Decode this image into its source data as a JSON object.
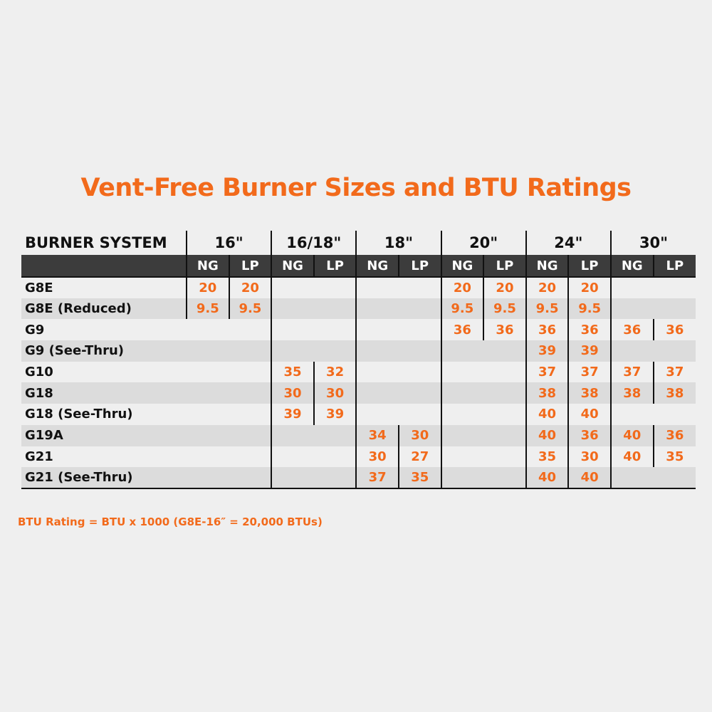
{
  "title": "Vent-Free Burner Sizes and BTU Ratings",
  "header": {
    "system_label": "BURNER SYSTEM",
    "sizes": [
      "16\"",
      "16/18\"",
      "18\"",
      "20\"",
      "24\"",
      "30\""
    ],
    "fuels": [
      "NG",
      "LP"
    ]
  },
  "rows": [
    {
      "name": "G8E",
      "values": [
        "20",
        "20",
        "",
        "",
        "",
        "",
        "20",
        "20",
        "20",
        "20",
        "",
        ""
      ]
    },
    {
      "name": "G8E (Reduced)",
      "values": [
        "9.5",
        "9.5",
        "",
        "",
        "",
        "",
        "9.5",
        "9.5",
        "9.5",
        "9.5",
        "",
        ""
      ]
    },
    {
      "name": "G9",
      "values": [
        "",
        "",
        "",
        "",
        "",
        "",
        "36",
        "36",
        "36",
        "36",
        "36",
        "36"
      ]
    },
    {
      "name": "G9 (See-Thru)",
      "values": [
        "",
        "",
        "",
        "",
        "",
        "",
        "",
        "",
        "39",
        "39",
        "",
        ""
      ]
    },
    {
      "name": "G10",
      "values": [
        "",
        "",
        "35",
        "32",
        "",
        "",
        "",
        "",
        "37",
        "37",
        "37",
        "37"
      ]
    },
    {
      "name": "G18",
      "values": [
        "",
        "",
        "30",
        "30",
        "",
        "",
        "",
        "",
        "38",
        "38",
        "38",
        "38"
      ]
    },
    {
      "name": "G18 (See-Thru)",
      "values": [
        "",
        "",
        "39",
        "39",
        "",
        "",
        "",
        "",
        "40",
        "40",
        "",
        ""
      ]
    },
    {
      "name": "G19A",
      "values": [
        "",
        "",
        "",
        "",
        "34",
        "30",
        "",
        "",
        "40",
        "36",
        "40",
        "36"
      ]
    },
    {
      "name": "G21",
      "values": [
        "",
        "",
        "",
        "",
        "30",
        "27",
        "",
        "",
        "35",
        "30",
        "40",
        "35"
      ]
    },
    {
      "name": "G21 (See-Thru)",
      "values": [
        "",
        "",
        "",
        "",
        "37",
        "35",
        "",
        "",
        "40",
        "40",
        "",
        ""
      ]
    }
  ],
  "note": "BTU Rating = BTU x 1000 (G8E-16″ = 20,000 BTUs)",
  "colors": {
    "accent": "#f26a1b",
    "header_bar": "#3c3c3c",
    "stripe": "#dcdcdc",
    "background": "#efefef"
  }
}
